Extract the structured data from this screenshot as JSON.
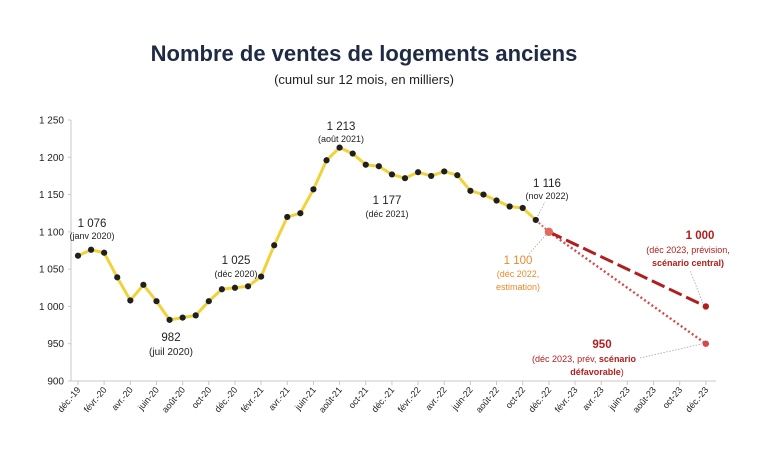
{
  "chart_data": {
    "type": "line",
    "title": "Nombre de ventes de logements anciens",
    "subtitle": "(cumul sur 12 mois, en milliers)",
    "ylim": [
      900,
      1250
    ],
    "yticks": [
      900,
      950,
      1000,
      1050,
      1100,
      1150,
      1200,
      1250
    ],
    "ytick_labels": [
      "900",
      "950",
      "1 000",
      "1 050",
      "1 100",
      "1 150",
      "1 200",
      "1 250"
    ],
    "grid": false,
    "x_labels": [
      "déc.-19",
      "févr.-20",
      "avr.-20",
      "juin-20",
      "août-20",
      "oct-20",
      "déc.-20",
      "févr.-21",
      "avr.-21",
      "juin-21",
      "août-21",
      "oct-21",
      "déc.-21",
      "févr.-22",
      "avr.-22",
      "juin-22",
      "août-22",
      "oct-22",
      "déc.-22",
      "févr.-23",
      "avr.-23",
      "juin-23",
      "août-23",
      "oct-23",
      "déc.-23"
    ],
    "colors": {
      "line": "#f2d23a",
      "marker": "#1f1f1f",
      "estimate": "#e06a5c",
      "central": "#b01e1e",
      "unfavorable": "#d24a4a",
      "estimate_text": "#e98a2b",
      "forecast_text": "#b01e1e"
    },
    "series": [
      {
        "values": [
          1068,
          1076,
          1072,
          1039,
          1008,
          1029,
          1007,
          982,
          985,
          988,
          1007,
          1023,
          1025,
          1027,
          1040,
          1082,
          1120,
          1125,
          1157,
          1196,
          1213,
          1205,
          1190,
          1188,
          1177,
          1172,
          1180,
          1175,
          1181,
          1176,
          1155,
          1150,
          1142,
          1134,
          1132,
          1116
        ]
      }
    ],
    "estimate_point": {
      "month_index": 36,
      "value": 1100
    },
    "forecast_central": {
      "from_index": 36,
      "from_value": 1100,
      "to_index": 48,
      "to_value": 1000
    },
    "forecast_unfavorable": {
      "from_index": 36,
      "from_value": 1100,
      "to_index": 48,
      "to_value": 950
    },
    "annotations": {
      "jan20_value": "1 076",
      "jan20_date": "(janv 2020)",
      "jul20_value": "982",
      "jul20_date": "(juil 2020)",
      "dec20_value": "1 025",
      "dec20_date": "(déc 2020)",
      "aug21_value": "1 213",
      "aug21_date": "(août 2021)",
      "dec21_value": "1 177",
      "dec21_date": "(déc 2021)",
      "nov22_value": "1 116",
      "nov22_date": "(nov 2022)",
      "est_value": "1 100",
      "est_line1": "(déc 2022,",
      "est_line2": "estimation)",
      "central_value": "1 000",
      "central_line1": "(déc 2023, prévision,",
      "central_line2": "scénario central)",
      "unfav_value": "950",
      "unfav_line1_a": "(déc 2023, prév, ",
      "unfav_line1_b": "scénario",
      "unfav_line2": "défavorable",
      "unfav_line2_end": ")"
    }
  }
}
